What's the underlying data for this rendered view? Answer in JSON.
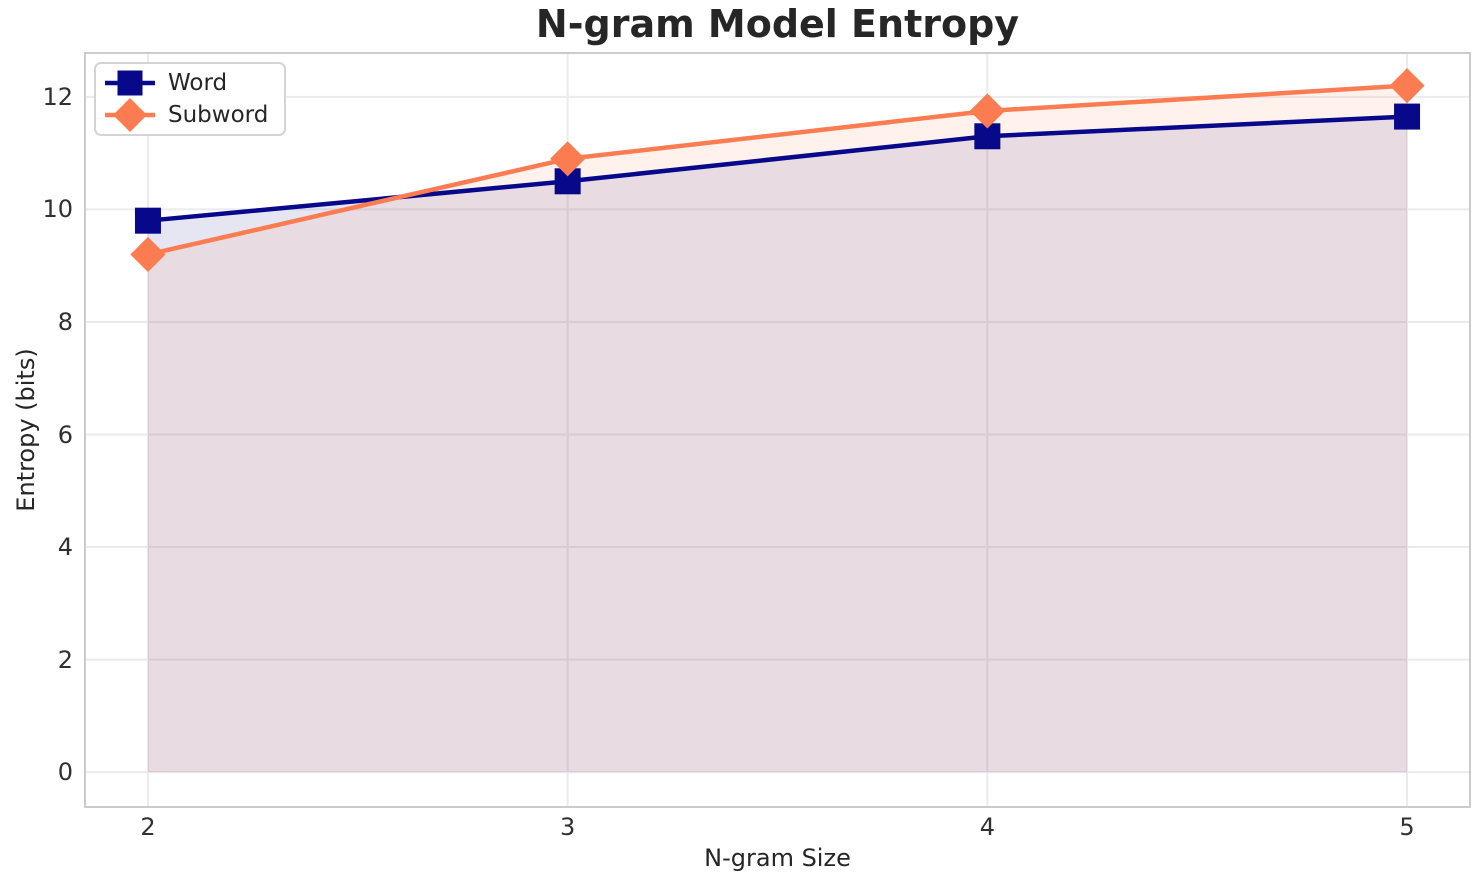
{
  "chart_data": {
    "type": "line",
    "title": "N-gram Model Entropy",
    "xlabel": "N-gram Size",
    "ylabel": "Entropy (bits)",
    "x": [
      2,
      3,
      4,
      5
    ],
    "series": [
      {
        "name": "Word",
        "color": "#08088A",
        "marker": "square",
        "values": [
          9.8,
          10.5,
          11.3,
          11.65
        ]
      },
      {
        "name": "Subword",
        "color": "#FC7C52",
        "marker": "diamond",
        "values": [
          9.2,
          10.9,
          11.75,
          12.2
        ]
      }
    ],
    "fill_to_zero": true,
    "fill_alpha": 0.1,
    "xlim": [
      1.85,
      5.15
    ],
    "ylim": [
      -0.62,
      12.78
    ],
    "xticks": [
      2,
      3,
      4,
      5
    ],
    "yticks": [
      0,
      2,
      4,
      6,
      8,
      10,
      12
    ],
    "grid": true,
    "legend_position": "upper left"
  },
  "style": {
    "grid_color": "#ebebee",
    "spine_color": "#cbcbcb",
    "text_color": "#262626",
    "background": "#ffffff"
  }
}
